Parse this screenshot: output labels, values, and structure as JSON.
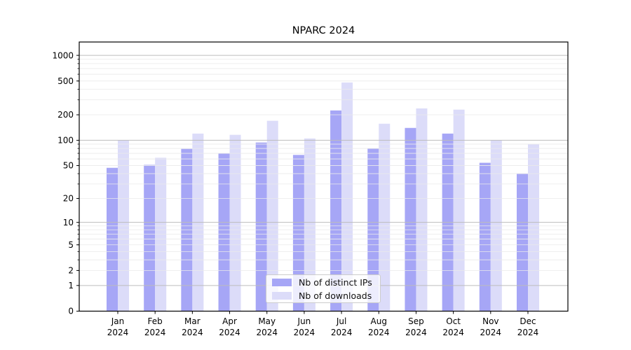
{
  "chart_data": {
    "type": "bar",
    "title": "NPARC 2024",
    "categories": [
      "Jan",
      "Feb",
      "Mar",
      "Apr",
      "May",
      "Jun",
      "Jul",
      "Aug",
      "Sep",
      "Oct",
      "Nov",
      "Dec"
    ],
    "category_year": "2024",
    "series": [
      {
        "name": "Nb of distinct IPs",
        "color": "#a6a6f6",
        "values": [
          47,
          51,
          79,
          70,
          94,
          67,
          225,
          80,
          140,
          120,
          54,
          40
        ]
      },
      {
        "name": "Nb of downloads",
        "color": "#dcdcf9",
        "values": [
          100,
          62,
          120,
          116,
          170,
          105,
          480,
          157,
          238,
          230,
          100,
          90
        ]
      }
    ],
    "yscale": "log1p",
    "ylim": [
      0,
      1435
    ],
    "yticks": [
      0,
      1,
      2,
      5,
      10,
      20,
      50,
      100,
      200,
      500,
      1000
    ],
    "grid": true,
    "legend_position": "lower center",
    "colors": {
      "major_grid": "#bdbdbd",
      "minor_grid": "#eaeaea",
      "spine": "#000000",
      "text": "#000000"
    }
  }
}
